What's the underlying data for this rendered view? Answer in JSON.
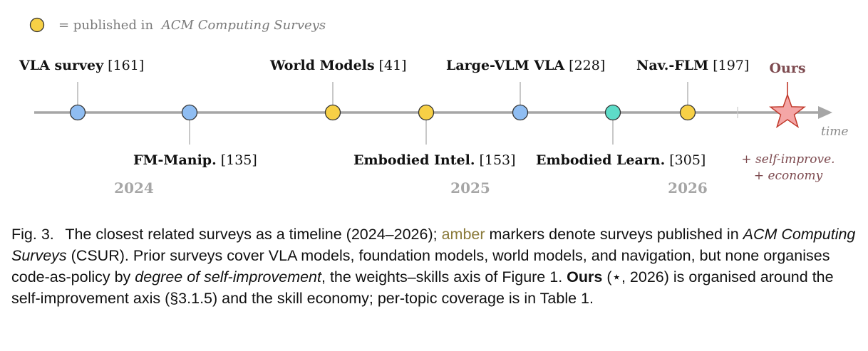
{
  "legend": {
    "equals_text": "= published in",
    "venue": "ACM Computing Surveys",
    "marker_color": "#f7d046"
  },
  "colors": {
    "amber": "#f7d046",
    "blue": "#8fbdf2",
    "teal": "#5ddcc8",
    "axis": "#a6a6a6",
    "star_fill": "#f4a6a6",
    "star_stroke": "#c0392b",
    "ours_text": "#7d4a4f"
  },
  "timeline": {
    "years": [
      "2024",
      "2025",
      "2026"
    ],
    "axis_label": "time",
    "events": [
      {
        "name": "VLA survey",
        "ref": "[161]",
        "color": "blue",
        "side": "top"
      },
      {
        "name": "FM-Manip.",
        "ref": "[135]",
        "color": "blue",
        "side": "bottom"
      },
      {
        "name": "World Models",
        "ref": "[41]",
        "color": "amber",
        "side": "top"
      },
      {
        "name": "Embodied Intel.",
        "ref": "[153]",
        "color": "amber",
        "side": "bottom"
      },
      {
        "name": "Large-VLM VLA",
        "ref": "[228]",
        "color": "blue",
        "side": "top"
      },
      {
        "name": "Embodied Learn.",
        "ref": "[305]",
        "color": "teal",
        "side": "bottom"
      },
      {
        "name": "Nav.-FLM",
        "ref": "[197]",
        "color": "amber",
        "side": "top"
      }
    ],
    "ours": {
      "label": "Ours",
      "notes": [
        "+ self-improve.",
        "+ economy"
      ]
    }
  },
  "caption": {
    "fig_num": "Fig. 3.",
    "p1": "The closest related surveys as a timeline (2024–2026);",
    "amber_word": "amber",
    "p2": "markers denote surveys published in",
    "venue": "ACM Computing Surveys",
    "p3": "(CSUR). Prior surveys cover VLA models, foundation models, world models, and navigation, but none organises code-as-policy by",
    "degree": "degree of self-improvement",
    "p4": ", the weights–skills axis of Figure 1.",
    "ours": "Ours",
    "p5": "(⋆, 2026) is organised around the self-improvement axis (§3.1.5) and the skill economy; per-topic coverage is in Table 1."
  }
}
